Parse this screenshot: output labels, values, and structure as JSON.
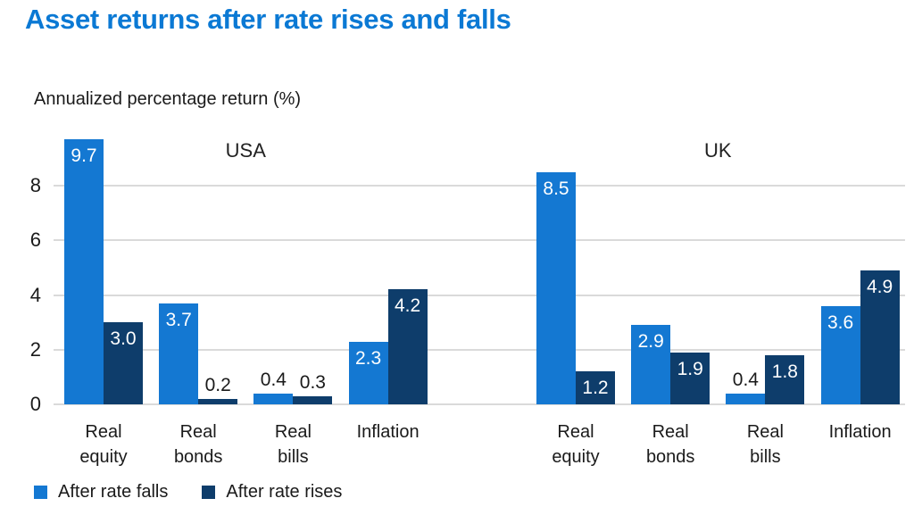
{
  "title": "Asset returns after rate rises and falls",
  "subtitle": "Annualized percentage return (%)",
  "legend": {
    "items": [
      {
        "label": "After rate falls",
        "color": "#1478d2"
      },
      {
        "label": "After rate rises",
        "color": "#0e3d6b"
      }
    ]
  },
  "colors": {
    "title_blue": "#0b79d4",
    "after_rate_falls": "#1478d2",
    "after_rate_rises": "#0e3d6b",
    "gridline": "#dadada",
    "text": "#1a1a1a"
  },
  "chart_data": {
    "type": "bar",
    "title": "Asset returns after rate rises and falls",
    "ylabel": "Annualized percentage return (%)",
    "xlabel": "",
    "y_axis": {
      "ticks": [
        0,
        2,
        4,
        6,
        8
      ],
      "ylim": [
        0,
        9.7
      ],
      "grid": true
    },
    "legend_position": "bottom-left",
    "series_names": [
      "After rate falls",
      "After rate rises"
    ],
    "series_colors": [
      "#1478d2",
      "#0e3d6b"
    ],
    "panels": [
      {
        "name": "USA",
        "categories": [
          "Real equity",
          "Real bonds",
          "Real bills",
          "Inflation"
        ],
        "series": [
          {
            "name": "After rate falls",
            "values": [
              9.7,
              3.7,
              0.4,
              2.3
            ]
          },
          {
            "name": "After rate rises",
            "values": [
              3.0,
              0.2,
              0.3,
              4.2
            ]
          }
        ]
      },
      {
        "name": "UK",
        "categories": [
          "Real equity",
          "Real bonds",
          "Real bills",
          "Inflation"
        ],
        "series": [
          {
            "name": "After rate falls",
            "values": [
              8.5,
              2.9,
              0.4,
              3.6
            ]
          },
          {
            "name": "After rate rises",
            "values": [
              1.2,
              1.9,
              1.8,
              4.9
            ]
          }
        ]
      }
    ]
  }
}
